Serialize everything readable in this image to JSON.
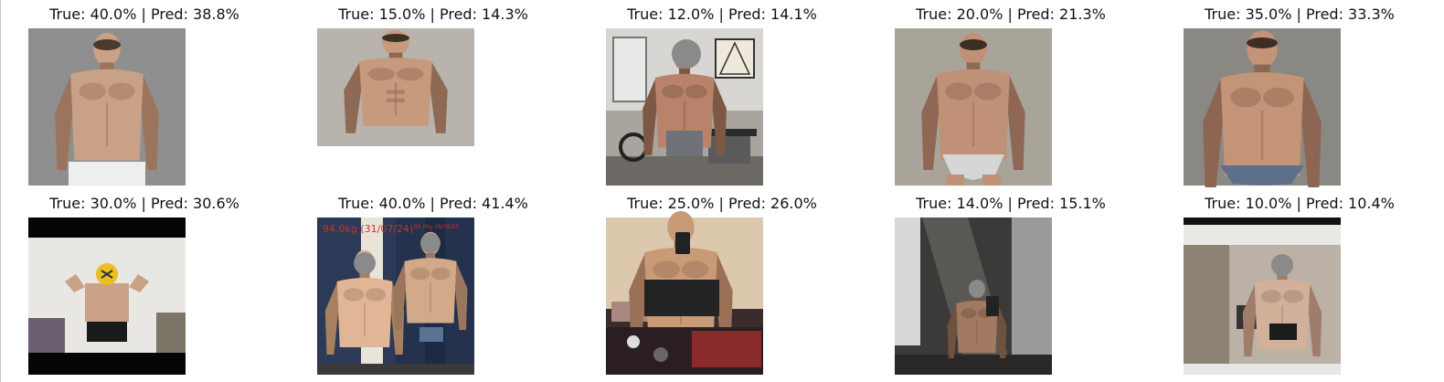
{
  "chart_data": {
    "type": "image-grid",
    "title": "",
    "panels": [
      {
        "true_label": "True: 40.0%",
        "pred_label": "Pred: 38.8%",
        "true": 40.0,
        "pred": 38.8,
        "photo": "shirtless-man-front-view-white-shorts"
      },
      {
        "true_label": "True: 15.0%",
        "pred_label": "Pred: 14.3%",
        "true": 15.0,
        "pred": 14.3,
        "photo": "lean-shirtless-man-torso"
      },
      {
        "true_label": "True: 12.0%",
        "pred_label": "Pred: 14.1%",
        "true": 12.0,
        "pred": 14.1,
        "photo": "man-in-home-gym-face-obscured"
      },
      {
        "true_label": "True: 20.0%",
        "pred_label": "Pred: 21.3%",
        "true": 20.0,
        "pred": 21.3,
        "photo": "muscular-man-grey-briefs"
      },
      {
        "true_label": "True: 35.0%",
        "pred_label": "Pred: 33.3%",
        "true": 35.0,
        "pred": 33.3,
        "photo": "heavy-muscular-man-blue-briefs"
      },
      {
        "true_label": "True: 30.0%",
        "pred_label": "Pred: 30.6%",
        "true": 30.0,
        "pred": 30.6,
        "photo": "man-flexing-in-room-black-bars"
      },
      {
        "true_label": "True: 40.0%",
        "pred_label": "Pred: 41.4%",
        "true": 40.0,
        "pred": 41.4,
        "photo": "before-after-mirror-photos"
      },
      {
        "true_label": "True: 25.0%",
        "pred_label": "Pred: 26.0%",
        "true": 25.0,
        "pred": 26.0,
        "photo": "mirror-selfie-torso-cluttered-room"
      },
      {
        "true_label": "True: 14.0%",
        "pred_label": "Pred: 15.1%",
        "true": 14.0,
        "pred": 15.1,
        "photo": "bathroom-mirror-selfie"
      },
      {
        "true_label": "True: 10.0%",
        "pred_label": "Pred: 10.4%",
        "true": 10.0,
        "pred": 10.4,
        "photo": "phone-screenshot-mirror-selfie"
      }
    ],
    "embedded_text": {
      "before_after_left": "94.0kg (31/07/24)",
      "before_after_right": "85.0kg 08/06/25"
    }
  }
}
